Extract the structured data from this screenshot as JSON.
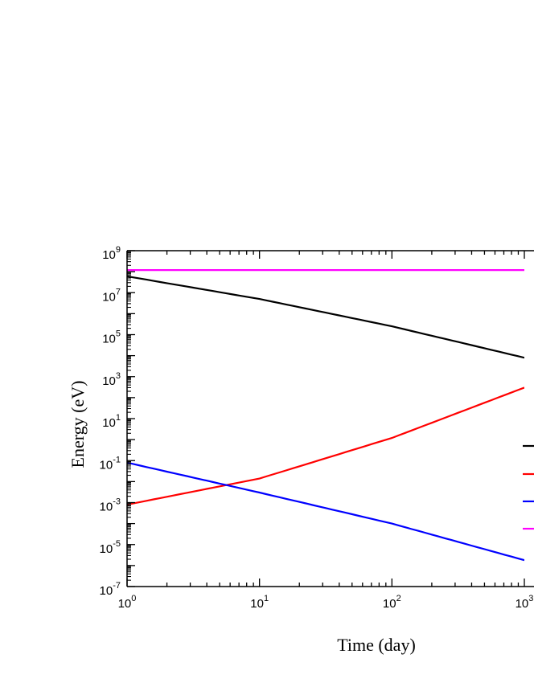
{
  "chart_data": {
    "type": "line",
    "xlabel": "Time (day)",
    "ylabel": "Energy (eV)",
    "xscale": "log",
    "yscale": "log",
    "xlim": [
      1,
      1000
    ],
    "ylim": [
      1e-07,
      1000000000.0
    ],
    "x_ticks": [
      {
        "base": "10",
        "exp": "0",
        "value": 1
      },
      {
        "base": "10",
        "exp": "1",
        "value": 10
      },
      {
        "base": "10",
        "exp": "2",
        "value": 100
      },
      {
        "base": "10",
        "exp": "3",
        "value": 1000
      }
    ],
    "y_ticks": [
      {
        "base": "10",
        "exp": "-7",
        "value": 1e-07
      },
      {
        "base": "10",
        "exp": "-5",
        "value": 1e-05
      },
      {
        "base": "10",
        "exp": "-3",
        "value": 0.001
      },
      {
        "base": "10",
        "exp": "-1",
        "value": 0.1
      },
      {
        "base": "10",
        "exp": "1",
        "value": 10.0
      },
      {
        "base": "10",
        "exp": "3",
        "value": 1000.0
      },
      {
        "base": "10",
        "exp": "5",
        "value": 100000.0
      },
      {
        "base": "10",
        "exp": "7",
        "value": 10000000.0
      },
      {
        "base": "10",
        "exp": "9",
        "value": 1000000000.0
      }
    ],
    "grid": false,
    "legend_position": "right",
    "series": [
      {
        "color": "#000000",
        "x": [
          1,
          10,
          100,
          1000
        ],
        "y": [
          60000000.0,
          5000000.0,
          250000.0,
          8000.0
        ]
      },
      {
        "color": "#ff0000",
        "x": [
          1,
          10,
          100,
          1000
        ],
        "y": [
          0.0008,
          0.014,
          1.2,
          300.0
        ]
      },
      {
        "color": "#0000ff",
        "x": [
          1,
          10,
          100,
          1000
        ],
        "y": [
          0.08,
          0.003,
          0.0001,
          1.8e-06
        ]
      },
      {
        "color": "#ff00ff",
        "x": [
          1,
          10,
          100,
          1000
        ],
        "y": [
          120000000.0,
          120000000.0,
          120000000.0,
          120000000.0
        ]
      }
    ]
  }
}
